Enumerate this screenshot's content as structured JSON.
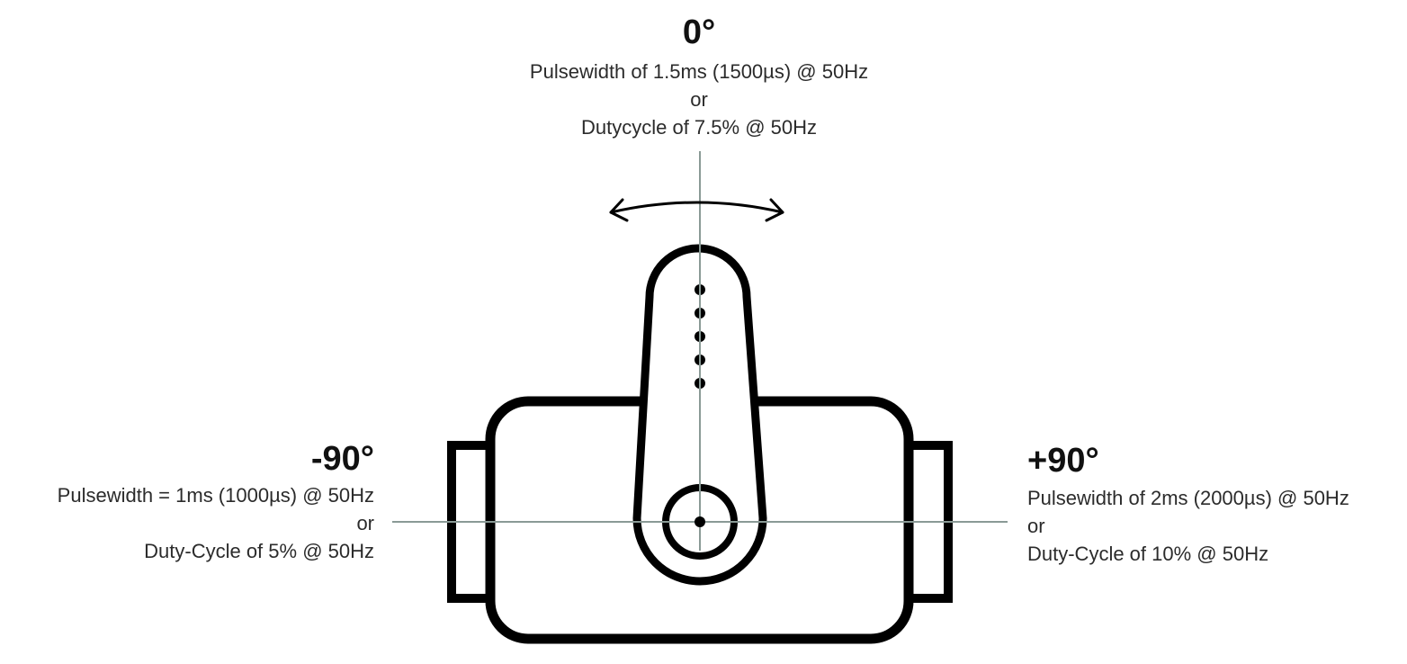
{
  "top": {
    "angle": "0°",
    "pulse": "Pulsewidth of 1.5ms (1500µs) @ 50Hz",
    "or": "or",
    "duty": "Dutycycle of 7.5% @ 50Hz"
  },
  "left": {
    "angle": "-90°",
    "pulse": "Pulsewidth = 1ms (1000µs) @ 50Hz",
    "or": "or",
    "duty": "Duty-Cycle of 5% @ 50Hz"
  },
  "right": {
    "angle": "+90°",
    "pulse": "Pulsewidth of 2ms (2000µs) @ 50Hz",
    "or": "or",
    "duty": "Duty-Cycle of 10% @ 50Hz"
  },
  "colors": {
    "outline": "#000000",
    "guide_lines": "#8a9a96",
    "text": "#2b2b2b"
  },
  "icons": [
    "rotation-arrow-icon",
    "servo-body-icon",
    "servo-horn-icon"
  ]
}
